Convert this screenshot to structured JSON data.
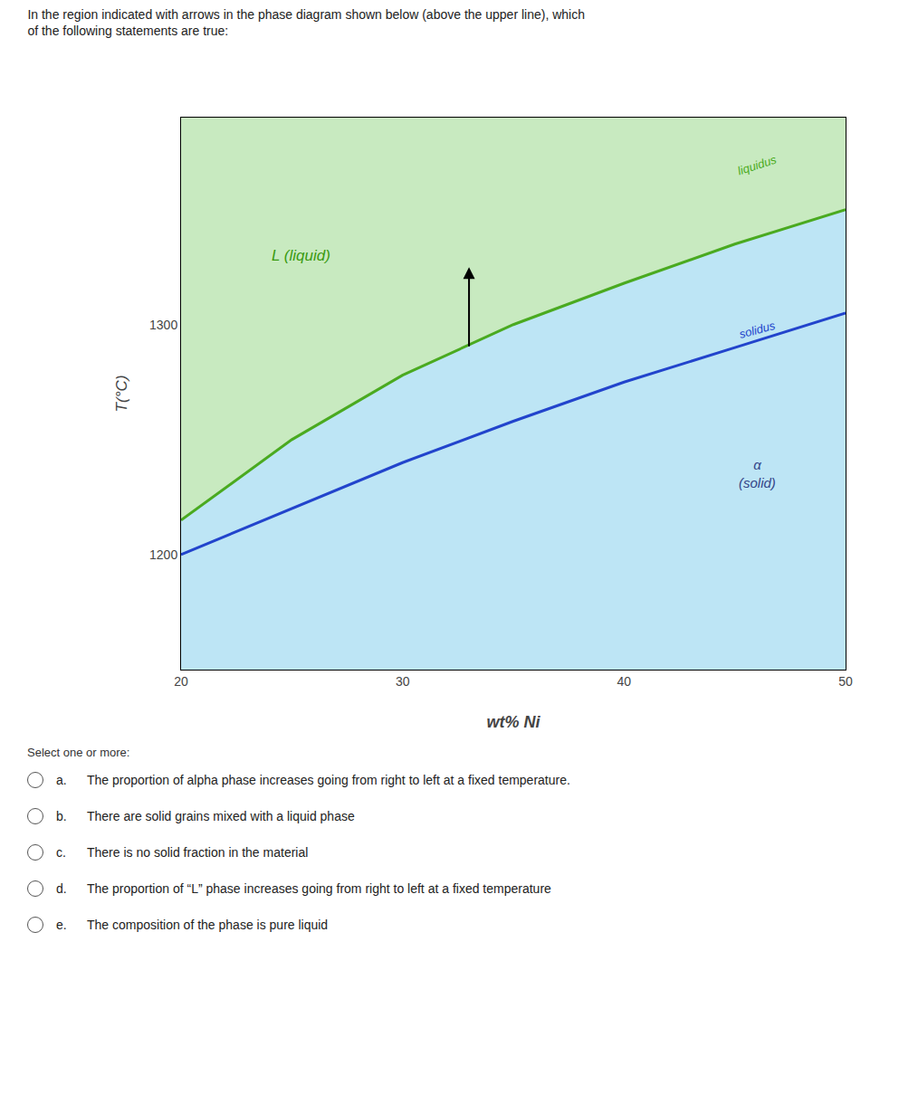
{
  "chart_data": {
    "type": "line",
    "title": "In the region indicated with arrows in the phase diagram shown below (above the upper line), which\nof the following statements are true:",
    "x_label": "wt% Ni",
    "y_label": "T(°C)",
    "xlim": [
      20,
      50
    ],
    "ylim": [
      1150,
      1390
    ],
    "xticks": [
      20,
      30,
      40,
      50
    ],
    "yticks": [
      1200,
      1300
    ],
    "grid": false,
    "series": [
      {
        "color": "#4aaa20",
        "x": [
          20,
          25,
          30,
          35,
          40,
          45,
          50
        ],
        "values": [
          1215,
          1250,
          1278,
          1300,
          1318,
          1335,
          1350
        ]
      },
      {
        "color": "#2244cc",
        "x": [
          20,
          25,
          30,
          35,
          40,
          45,
          50
        ],
        "values": [
          1200,
          1220,
          1240,
          1258,
          1275,
          1290,
          1305
        ]
      }
    ],
    "region_colors": {
      "liquid": "#c8eac0",
      "two_phase": "#bde5f5",
      "solid": "#bde5f5"
    },
    "annotations": [
      {
        "text": "L (liquid)",
        "x": 24,
        "y": 1330,
        "color": "#3a9a10"
      },
      {
        "text": "liquidus",
        "x": 46,
        "y": 1363,
        "color": "#4aaa20"
      },
      {
        "text": "solidus",
        "x": 46,
        "y": 1292,
        "color": "#2244cc"
      },
      {
        "text": "α\n(solid)",
        "x": 46,
        "y": 1235,
        "color": "#334488"
      }
    ],
    "arrow": {
      "x": 33,
      "y_start": 1290,
      "y_end": 1325
    },
    "select_text": "Select one or more:",
    "options": [
      {
        "key": "a.",
        "text": "The proportion of alpha phase increases going from right to left at a fixed temperature."
      },
      {
        "key": "b.",
        "text": "There are solid grains mixed with a liquid phase"
      },
      {
        "key": "c.",
        "text": "There is no solid fraction in the material"
      },
      {
        "key": "d.",
        "text": "The proportion of “L” phase increases going from right to left at a fixed temperature"
      },
      {
        "key": "e.",
        "text": "The composition of the phase is pure liquid"
      }
    ]
  }
}
